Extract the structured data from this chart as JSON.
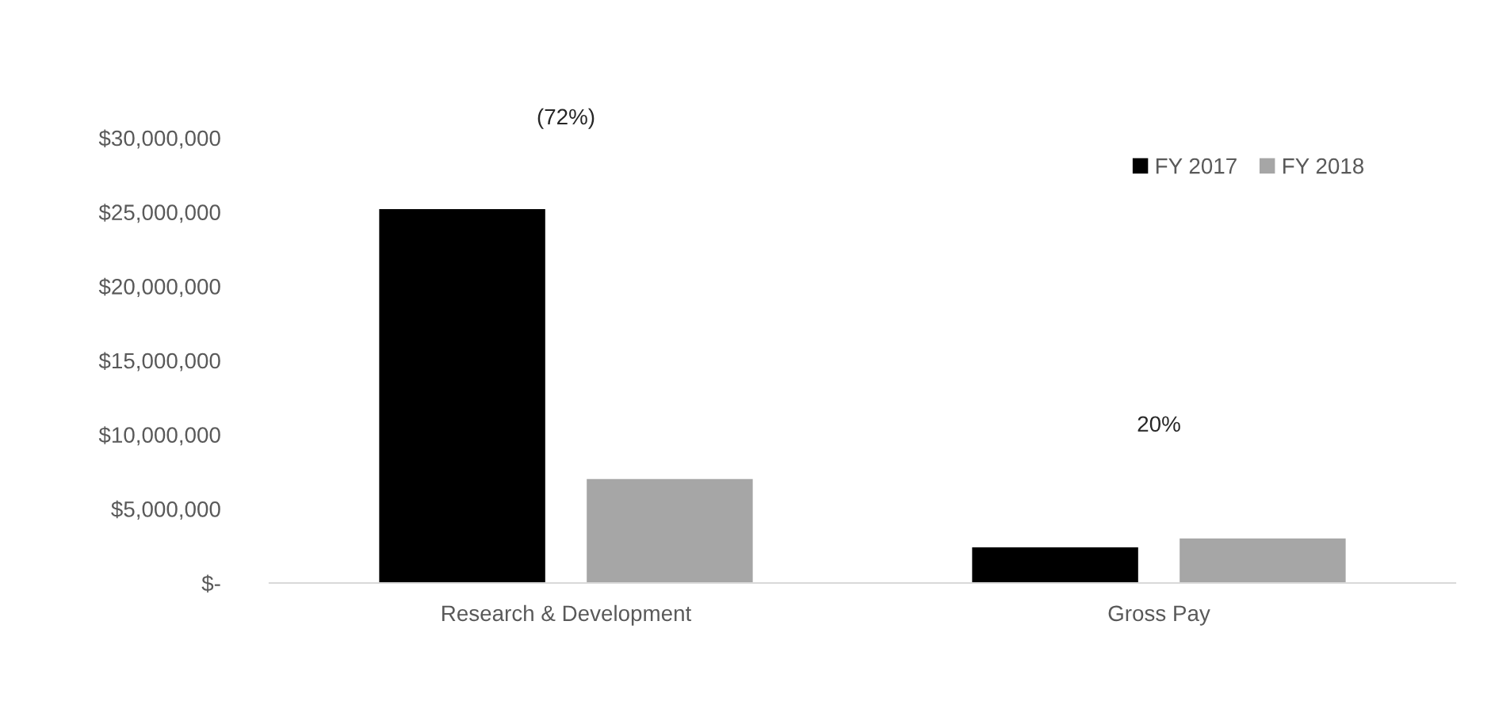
{
  "chart_data": {
    "type": "bar",
    "categories": [
      "Research & Development",
      "Gross Pay"
    ],
    "series": [
      {
        "name": "FY 2017",
        "color": "#000000",
        "values": [
          25200000,
          2400000
        ]
      },
      {
        "name": "FY 2018",
        "color": "#a6a6a6",
        "values": [
          7000000,
          3000000
        ]
      }
    ],
    "ylim": [
      0,
      30000000
    ],
    "yticks": [
      {
        "value": 0,
        "label": "$-"
      },
      {
        "value": 5000000,
        "label": "$5,000,000"
      },
      {
        "value": 10000000,
        "label": "$10,000,000"
      },
      {
        "value": 15000000,
        "label": "$15,000,000"
      },
      {
        "value": 20000000,
        "label": "$20,000,000"
      },
      {
        "value": 25000000,
        "label": "$25,000,000"
      },
      {
        "value": 30000000,
        "label": "$30,000,000"
      }
    ],
    "annotations": [
      "(72%)",
      "20%"
    ],
    "legend": "top right",
    "grid": false
  }
}
